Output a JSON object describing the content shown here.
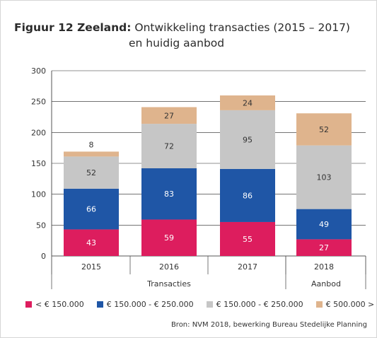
{
  "title": {
    "prefix": "Figuur 12 Zeeland:",
    "main": "Ontwikkeling transacties (2015 – 2017)",
    "line2": "en huidig aanbod"
  },
  "source": "Bron: NVM 2018, bewerking Bureau Stedelijke Planning",
  "colors": {
    "lt150": "#dd1d5e",
    "150_250a": "#1f56a6",
    "150_250b": "#c6c6c6",
    "gt500": "#dfb48d"
  },
  "chart_data": {
    "type": "bar",
    "stacked": true,
    "categories": [
      "2015",
      "2016",
      "2017",
      "2018"
    ],
    "groups": [
      {
        "label": "Transacties",
        "categories": [
          "2015",
          "2016",
          "2017"
        ]
      },
      {
        "label": "Aanbod",
        "categories": [
          "2018"
        ]
      }
    ],
    "series": [
      {
        "name": "< € 150.000",
        "color": "#dd1d5e",
        "values": [
          43,
          59,
          55,
          27
        ]
      },
      {
        "name": "€ 150.000 - € 250.000",
        "color": "#1f56a6",
        "values": [
          66,
          83,
          86,
          49
        ]
      },
      {
        "name": "€ 150.000 - € 250.000",
        "color": "#c6c6c6",
        "values": [
          52,
          72,
          95,
          103
        ]
      },
      {
        "name": "€ 500.000 >",
        "color": "#dfb48d",
        "values": [
          8,
          27,
          24,
          52
        ]
      }
    ],
    "ylim": [
      0,
      300
    ],
    "yticks": [
      "0",
      "50",
      "100",
      "150",
      "200",
      "250",
      "300"
    ],
    "grid": true,
    "legend_position": "bottom"
  }
}
